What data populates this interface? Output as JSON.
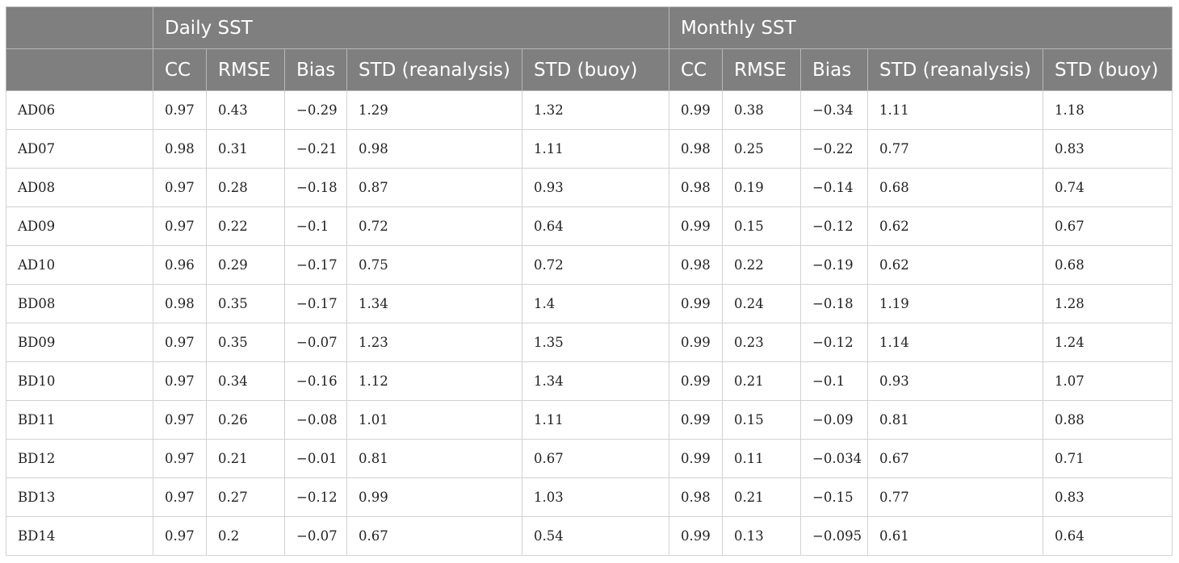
{
  "table": {
    "groups": [
      "",
      "Daily SST",
      "Monthly SST"
    ],
    "columns": [
      "",
      "CC",
      "RMSE",
      "Bias",
      "STD (reanalysis)",
      "STD (buoy)",
      "CC",
      "RMSE",
      "Bias",
      "STD (reanalysis)",
      "STD (buoy)"
    ],
    "rows": [
      [
        "AD06",
        "0.97",
        "0.43",
        "−0.29",
        "1.29",
        "1.32",
        "0.99",
        "0.38",
        "−0.34",
        "1.11",
        "1.18"
      ],
      [
        "AD07",
        "0.98",
        "0.31",
        "−0.21",
        "0.98",
        "1.11",
        "0.98",
        "0.25",
        "−0.22",
        "0.77",
        "0.83"
      ],
      [
        "AD08",
        "0.97",
        "0.28",
        "−0.18",
        "0.87",
        "0.93",
        "0.98",
        "0.19",
        "−0.14",
        "0.68",
        "0.74"
      ],
      [
        "AD09",
        "0.97",
        "0.22",
        "−0.1",
        "0.72",
        "0.64",
        "0.99",
        "0.15",
        "−0.12",
        "0.62",
        "0.67"
      ],
      [
        "AD10",
        "0.96",
        "0.29",
        "−0.17",
        "0.75",
        "0.72",
        "0.98",
        "0.22",
        "−0.19",
        "0.62",
        "0.68"
      ],
      [
        "BD08",
        "0.98",
        "0.35",
        "−0.17",
        "1.34",
        "1.4",
        "0.99",
        "0.24",
        "−0.18",
        "1.19",
        "1.28"
      ],
      [
        "BD09",
        "0.97",
        "0.35",
        "−0.07",
        "1.23",
        "1.35",
        "0.99",
        "0.23",
        "−0.12",
        "1.14",
        "1.24"
      ],
      [
        "BD10",
        "0.97",
        "0.34",
        "−0.16",
        "1.12",
        "1.34",
        "0.99",
        "0.21",
        "−0.1",
        "0.93",
        "1.07"
      ],
      [
        "BD11",
        "0.97",
        "0.26",
        "−0.08",
        "1.01",
        "1.11",
        "0.99",
        "0.15",
        "−0.09",
        "0.81",
        "0.88"
      ],
      [
        "BD12",
        "0.97",
        "0.21",
        "−0.01",
        "0.81",
        "0.67",
        "0.99",
        "0.11",
        "−0.034",
        "0.67",
        "0.71"
      ],
      [
        "BD13",
        "0.97",
        "0.27",
        "−0.12",
        "0.99",
        "1.03",
        "0.98",
        "0.21",
        "−0.15",
        "0.77",
        "0.83"
      ],
      [
        "BD14",
        "0.97",
        "0.2",
        "−0.07",
        "0.67",
        "0.54",
        "0.99",
        "0.13",
        "−0.095",
        "0.61",
        "0.64"
      ]
    ]
  }
}
